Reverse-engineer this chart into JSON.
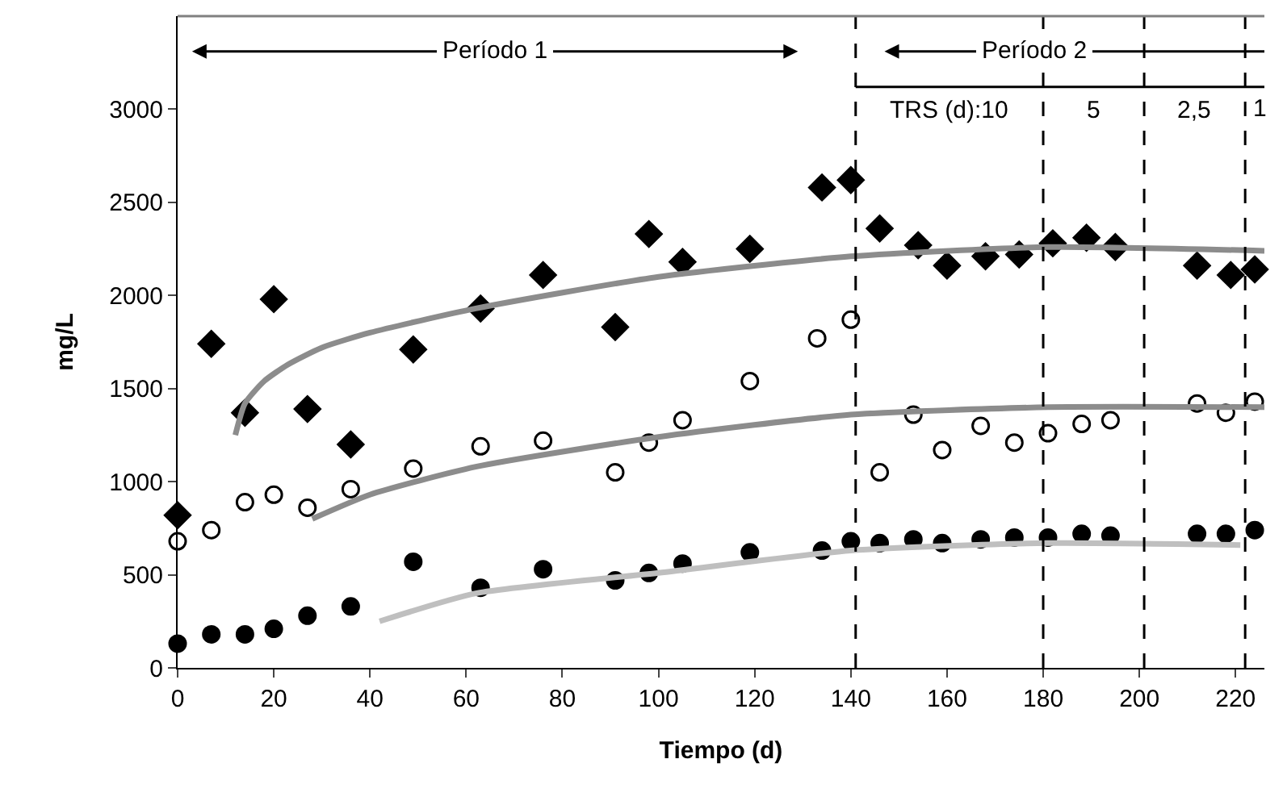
{
  "chart_data": {
    "type": "scatter",
    "xlabel": "Tiempo (d)",
    "ylabel": "mg/L",
    "xlim": [
      0,
      226
    ],
    "xticks": [
      0,
      20,
      40,
      60,
      80,
      100,
      120,
      140,
      160,
      180,
      200,
      220
    ],
    "ylim": [
      0,
      3500
    ],
    "yticks": [
      0,
      500,
      1000,
      1500,
      2000,
      2500,
      3000
    ],
    "series": [
      {
        "marker": "diamond",
        "color": "#000000",
        "x": [
          0,
          7,
          14,
          20,
          27,
          36,
          49,
          63,
          76,
          91,
          98,
          105,
          119,
          134,
          140,
          146,
          154,
          160,
          168,
          175,
          182,
          189,
          195,
          212,
          219,
          224
        ],
        "values": [
          820,
          1740,
          1370,
          1980,
          1390,
          1200,
          1710,
          1930,
          2110,
          1830,
          2330,
          2180,
          2250,
          2580,
          2620,
          2360,
          2270,
          2160,
          2210,
          2220,
          2280,
          2310,
          2260,
          2160,
          2110,
          2140
        ]
      },
      {
        "marker": "circle",
        "color": "#ffffff",
        "x": [
          0,
          7,
          14,
          20,
          27,
          36,
          49,
          63,
          76,
          91,
          98,
          105,
          119,
          133,
          140,
          146,
          153,
          159,
          167,
          174,
          181,
          188,
          194,
          212,
          218,
          224
        ],
        "values": [
          680,
          740,
          890,
          930,
          860,
          960,
          1070,
          1190,
          1220,
          1050,
          1210,
          1330,
          1540,
          1770,
          1870,
          1050,
          1360,
          1170,
          1300,
          1210,
          1260,
          1310,
          1330,
          1420,
          1370,
          1430
        ]
      },
      {
        "marker": "circle",
        "color": "#000000",
        "x": [
          0,
          7,
          14,
          20,
          27,
          36,
          49,
          63,
          76,
          91,
          98,
          105,
          119,
          134,
          140,
          146,
          153,
          159,
          167,
          174,
          181,
          188,
          194,
          212,
          218,
          224
        ],
        "values": [
          130,
          180,
          180,
          210,
          280,
          330,
          570,
          430,
          530,
          470,
          510,
          560,
          620,
          630,
          680,
          670,
          690,
          670,
          690,
          700,
          700,
          720,
          710,
          720,
          720,
          740
        ]
      },
      {
        "type": "line",
        "marker": "none",
        "color": "#8c8c8c",
        "x": [
          12,
          14,
          18,
          23,
          30,
          40,
          62,
          100,
          140,
          181,
          226
        ],
        "values": [
          1250,
          1420,
          1540,
          1630,
          1720,
          1800,
          1930,
          2100,
          2210,
          2260,
          2240
        ]
      },
      {
        "type": "line",
        "marker": "none",
        "color": "#8c8c8c",
        "x": [
          28,
          40,
          62,
          100,
          140,
          181,
          226
        ],
        "values": [
          800,
          930,
          1080,
          1240,
          1360,
          1400,
          1400
        ]
      },
      {
        "type": "line",
        "marker": "none",
        "color": "#bfbfbf",
        "x": [
          42,
          62,
          100,
          140,
          181,
          221
        ],
        "values": [
          250,
          400,
          510,
          630,
          670,
          660
        ]
      }
    ],
    "ref_lines": [
      {
        "axis": "x",
        "value": 141,
        "line_style": "dashed",
        "color": "#000000"
      },
      {
        "axis": "x",
        "value": 180,
        "line_style": "dashed",
        "color": "#000000"
      },
      {
        "axis": "x",
        "value": 201,
        "line_style": "dashed",
        "color": "#000000"
      },
      {
        "axis": "x",
        "value": 222,
        "line_style": "dashed",
        "color": "#000000"
      }
    ],
    "annotations": [
      "Período 1",
      "Período 2",
      "TRS (d):10",
      "5",
      "2,5",
      {
        "text": "1",
        "x": 223,
        "y": 3000
      }
    ]
  }
}
